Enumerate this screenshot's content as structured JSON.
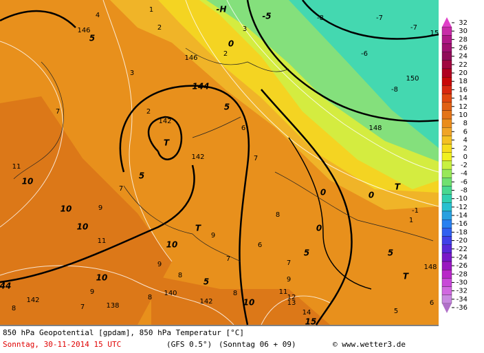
{
  "map": {
    "labels": [
      "1",
      "4",
      "146",
      "5",
      "2",
      "-H",
      "-5",
      "-8",
      "-7",
      "-7",
      "15",
      "0",
      "2",
      "3",
      "146",
      "-6",
      "3",
      "144",
      "150",
      "-8",
      "5",
      "2",
      "142",
      "T",
      "6",
      "148",
      "7",
      "11",
      "10",
      "7",
      "5",
      "142",
      "7",
      "0",
      "0",
      "T",
      "10",
      "9",
      "10",
      "T",
      "8",
      "0",
      "-1",
      "1",
      "10",
      "11",
      "9",
      "7",
      "6",
      "5",
      "5",
      "9",
      "10",
      "8",
      "5",
      "7",
      "9",
      "T",
      "148",
      "44",
      "142",
      "7",
      "138",
      "140",
      "142",
      "8",
      "8",
      "10",
      "11",
      "12",
      "13",
      "14",
      "15",
      "8",
      "9",
      "6",
      "5"
    ]
  },
  "colorbar": {
    "ticks": [
      32,
      30,
      28,
      26,
      24,
      22,
      20,
      18,
      16,
      14,
      12,
      10,
      8,
      6,
      4,
      2,
      0,
      -2,
      -4,
      -6,
      -8,
      -10,
      -12,
      -14,
      -16,
      -18,
      -20,
      -22,
      -24,
      -26,
      -28,
      -30,
      -32,
      -34,
      -36
    ],
    "colors": [
      "#e040c8",
      "#c82ca8",
      "#b01888",
      "#a01070",
      "#900c58",
      "#a00840",
      "#b00020",
      "#c80808",
      "#d82810",
      "#e04810",
      "#e06014",
      "#e47418",
      "#ea8c1c",
      "#f0a428",
      "#f4c024",
      "#f6dc1c",
      "#f0f020",
      "#c8f040",
      "#98e858",
      "#70e070",
      "#48d890",
      "#30d0b0",
      "#28c0d0",
      "#28a0e0",
      "#2880f0",
      "#3060f0",
      "#4040e8",
      "#5828d8",
      "#7818c8",
      "#9818c0",
      "#b828c8",
      "#c848d8",
      "#d068e0",
      "#c888e0",
      "#b070c8"
    ]
  },
  "footer": {
    "title": "850 hPa Geopotential [gpdam], 850 hPa Temperatur [°C]",
    "date": "Sonntag, 30-11-2014  15 UTC",
    "model": "(GFS 0.5°)",
    "run": "(Sonntag 06 + 09)",
    "credit": "© www.wetter3.de"
  }
}
